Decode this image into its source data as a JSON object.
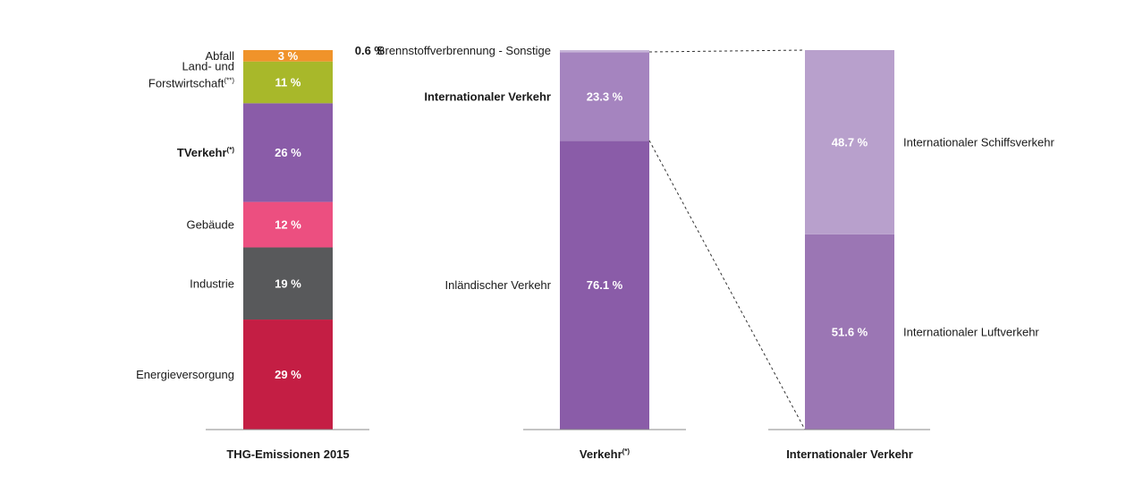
{
  "colors": {
    "abfall": "#f0932a",
    "land": "#a8b82a",
    "verkehr": "#8a5ca8",
    "gebaeude": "#ec4f80",
    "industrie": "#58595b",
    "energie": "#c41e44",
    "brennstoff": "#c7b4d8",
    "intl": "#a584bf",
    "inland": "#8a5ca8",
    "schiff": "#b8a0cc",
    "luft": "#9b76b4"
  },
  "chart_data": [
    {
      "type": "bar",
      "stacked": true,
      "xlabel": "THG-Emissionen 2015",
      "segments": [
        {
          "key": "energie",
          "label": "Energieversorgung",
          "value": 29,
          "value_label": "29 %"
        },
        {
          "key": "industrie",
          "label": "Industrie",
          "value": 19,
          "value_label": "19 %"
        },
        {
          "key": "gebaeude",
          "label": "Gebäude",
          "value": 12,
          "value_label": "12 %"
        },
        {
          "key": "verkehr",
          "label": "TVerkehr",
          "label_sup": "(*)",
          "value": 26,
          "value_label": "26 %"
        },
        {
          "key": "land",
          "label": "Land- und",
          "label_line2": "Forstwirtschaft",
          "label_sup": "(**)",
          "value": 11,
          "value_label": "11 %"
        },
        {
          "key": "abfall",
          "label": "Abfall",
          "value": 3,
          "value_label": "3 %"
        }
      ]
    },
    {
      "type": "bar",
      "stacked": true,
      "xlabel": "Verkehr",
      "xlabel_sup": "(*)",
      "segments": [
        {
          "key": "inland",
          "label": "Inländischer Verkehr",
          "value": 76.1,
          "value_label": "76.1 %"
        },
        {
          "key": "intl",
          "label": "Internationaler Verkehr",
          "value": 23.3,
          "value_label": "23.3 %"
        },
        {
          "key": "brennstoff",
          "label": "Brennstoffverbrennung - Sonstige",
          "value": 0.6,
          "value_label": "0.6 %"
        }
      ]
    },
    {
      "type": "bar",
      "stacked": true,
      "xlabel": "Internationaler Verkehr",
      "segments": [
        {
          "key": "luft",
          "label": "Internationaler Luftverkehr",
          "value": 51.6,
          "value_label": "51.6 %"
        },
        {
          "key": "schiff",
          "label": "Internationaler Schiffsverkehr",
          "value": 48.7,
          "value_label": "48.7 %"
        }
      ]
    }
  ]
}
